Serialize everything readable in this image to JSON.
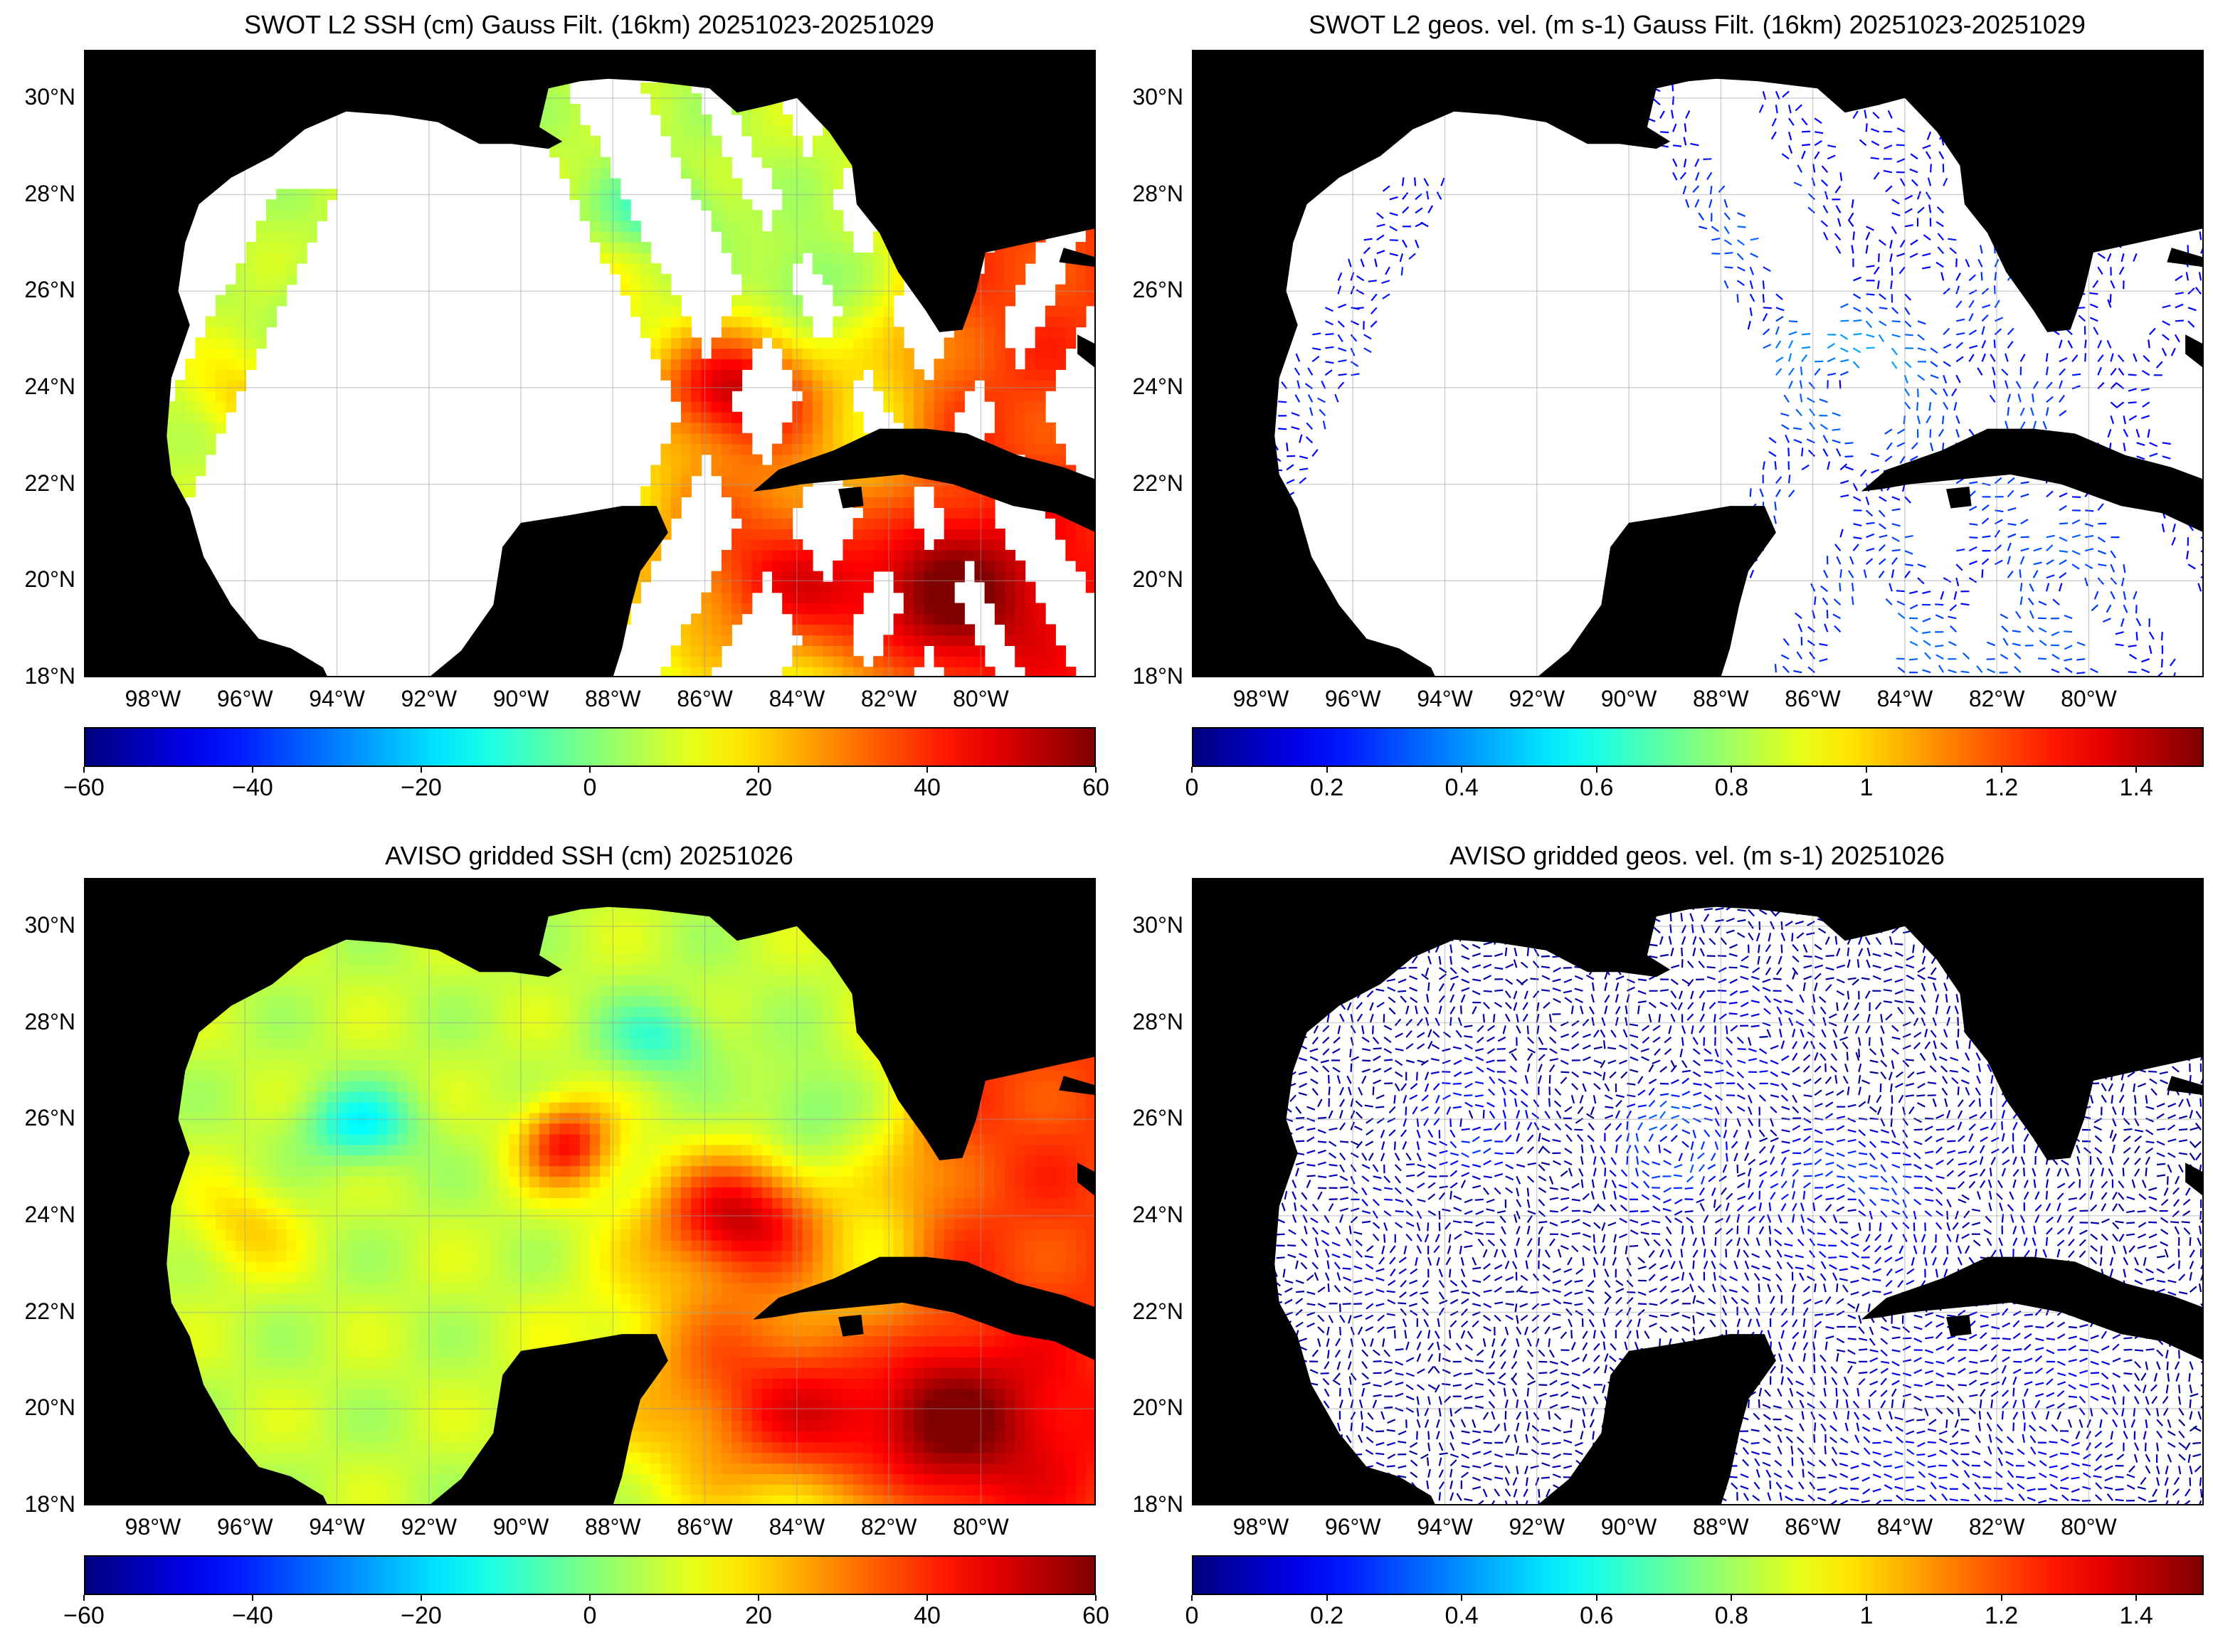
{
  "panels": [
    {
      "id": "swot-ssh",
      "title": "SWOT L2 SSH (cm) Gauss Filt. (16km) 20251023-20251029",
      "kind": "ssh",
      "colorbar": {
        "ticks": [
          "−60",
          "−40",
          "−20",
          "0",
          "20",
          "40",
          "60"
        ],
        "min": -60,
        "max": 60
      }
    },
    {
      "id": "swot-vel",
      "title": "SWOT L2 geos. vel. (m s-1) Gauss Filt. (16km) 20251023-20251029",
      "kind": "vel",
      "colorbar": {
        "ticks": [
          "0",
          "0.2",
          "0.4",
          "0.6",
          "0.8",
          "1",
          "1.2",
          "1.4"
        ],
        "min": 0,
        "max": 1.5
      }
    },
    {
      "id": "aviso-ssh",
      "title": "AVISO gridded SSH (cm) 20251026",
      "kind": "ssh",
      "colorbar": {
        "ticks": [
          "−60",
          "−40",
          "−20",
          "0",
          "20",
          "40",
          "60"
        ],
        "min": -60,
        "max": 60
      }
    },
    {
      "id": "aviso-vel",
      "title": "AVISO gridded geos. vel. (m s-1)  20251026",
      "kind": "vel",
      "colorbar": {
        "ticks": [
          "0",
          "0.2",
          "0.4",
          "0.6",
          "0.8",
          "1",
          "1.2",
          "1.4"
        ],
        "min": 0,
        "max": 1.5
      }
    }
  ],
  "axes": {
    "lat_labels": [
      "30°N",
      "28°N",
      "26°N",
      "24°N",
      "22°N",
      "20°N",
      "18°N"
    ],
    "lon_labels": [
      "98°W",
      "96°W",
      "94°W",
      "92°W",
      "90°W",
      "88°W",
      "86°W",
      "84°W",
      "82°W",
      "80°W"
    ]
  },
  "colors": {
    "land": "#000000",
    "ocean_nodata": "#ffffff",
    "colormap": "jet"
  }
}
